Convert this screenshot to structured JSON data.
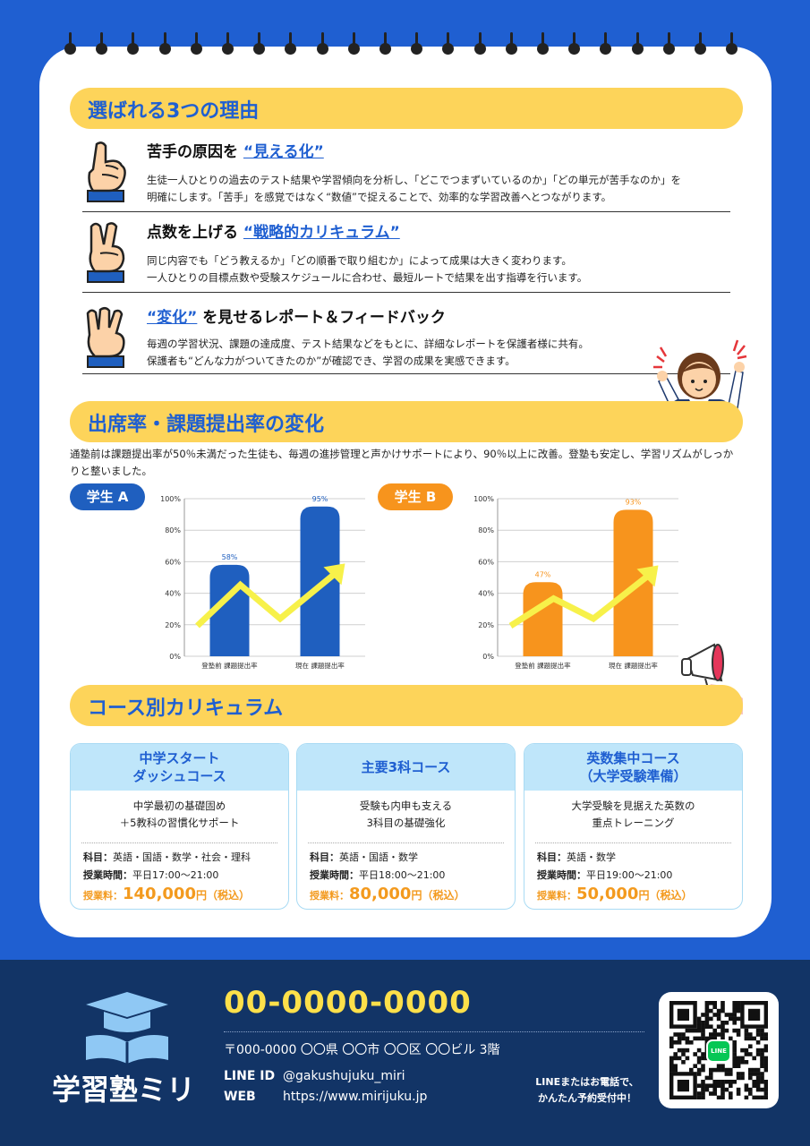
{
  "reasons": {
    "title": "選ばれる3つの理由",
    "items": [
      {
        "pre": "苦手の原因を ",
        "hl": "“見える化”",
        "post": "",
        "lines": [
          "生徒一人ひとりの過去のテスト結果や学習傾向を分析し、「どこでつまずいているのか」「どの単元が苦手なのか」を",
          "明確にします。「苦手」を感覚ではなく“数値”で捉えることで、効率的な学習改善へとつながります。"
        ]
      },
      {
        "pre": "点数を上げる ",
        "hl": "“戦略的カリキュラム”",
        "post": "",
        "lines": [
          "同じ内容でも「どう教えるか」「どの順番で取り組むか」によって成果は大きく変わります。",
          "一人ひとりの目標点数や受験スケジュールに合わせ、最短ルートで結果を出す指導を行います。"
        ]
      },
      {
        "pre": "",
        "hl": "“変化”",
        "post": " を見せるレポート＆フィードバック",
        "lines": [
          "毎週の学習状況、課題の達成度、テスト結果などをもとに、詳細なレポートを保護者様に共有。",
          "保護者も“どんな力がついてきたのか”が確認でき、学習の成果を実感できます。"
        ]
      }
    ]
  },
  "attendance": {
    "title": "出席率・課題提出率の変化",
    "intro": "通塾前は課題提出率が50％未満だった生徒も、毎週の進捗管理と声かけサポートにより、90％以上に改善。登塾も安定し、学習リズムがしっかりと整いました。"
  },
  "chart_data": [
    {
      "type": "bar",
      "label": "学生 A",
      "color": "#1f5fbf",
      "categories": [
        "登塾前 課題提出率",
        "現在 課題提出率"
      ],
      "values": [
        58,
        95
      ],
      "value_labels": [
        "58%",
        "95%"
      ],
      "ylim": [
        0,
        100
      ],
      "yticks": [
        "0%",
        "20%",
        "40%",
        "60%",
        "80%",
        "100%"
      ],
      "grid": true
    },
    {
      "type": "bar",
      "label": "学生 B",
      "color": "#f7941d",
      "categories": [
        "登塾前 課題提出率",
        "現在 課題提出率"
      ],
      "values": [
        47,
        93
      ],
      "value_labels": [
        "47%",
        "93%"
      ],
      "ylim": [
        0,
        100
      ],
      "yticks": [
        "0%",
        "20%",
        "40%",
        "60%",
        "80%",
        "100%"
      ],
      "grid": true
    }
  ],
  "courses": {
    "title": "コース別カリキュラム",
    "items": [
      {
        "name": "中学スタート\nダッシュコース",
        "desc": "中学最初の基礎固め\n＋5教科の習慣化サポート",
        "subjects_label": "科目：",
        "subjects": "英語・国語・数学・社会・理科",
        "time_label": "授業時間：",
        "time": "平日17:00〜21:00",
        "fee_label": "授業料：",
        "fee": "140,000",
        "fee_unit": "円",
        "fee_tax": "（税込）"
      },
      {
        "name": "主要3科コース",
        "desc": "受験も内申も支える\n3科目の基礎強化",
        "subjects_label": "科目：",
        "subjects": "英語・国語・数学",
        "time_label": "授業時間：",
        "time": "平日18:00〜21:00",
        "fee_label": "授業料：",
        "fee": "80,000",
        "fee_unit": "円",
        "fee_tax": "（税込）"
      },
      {
        "name": "英数集中コース\n（大学受験準備）",
        "desc": "大学受験を見据えた英数の\n重点トレーニング",
        "subjects_label": "科目：",
        "subjects": "英語・数学",
        "time_label": "授業時間：",
        "time": "平日19:00〜21:00",
        "fee_label": "授業料：",
        "fee": "50,000",
        "fee_unit": "円",
        "fee_tax": "（税込）"
      }
    ]
  },
  "footer": {
    "school_name": "学習塾ミリ",
    "phone": "00-0000-0000",
    "address": "〒000-0000 〇〇県 〇〇市 〇〇区 〇〇ビル 3階",
    "line_label": "LINE ID",
    "line_id": "@gakushujuku_miri",
    "web_label": "WEB",
    "web": "https://www.mirijuku.jp",
    "cta": "LINEまたはお電話で、\nかんたん予約受付中！",
    "qr_badge": "LINE"
  },
  "colors": {
    "blue": "#1f5fd1",
    "yellow": "#fdd45a",
    "orange": "#f7941d",
    "navy": "#123466"
  }
}
